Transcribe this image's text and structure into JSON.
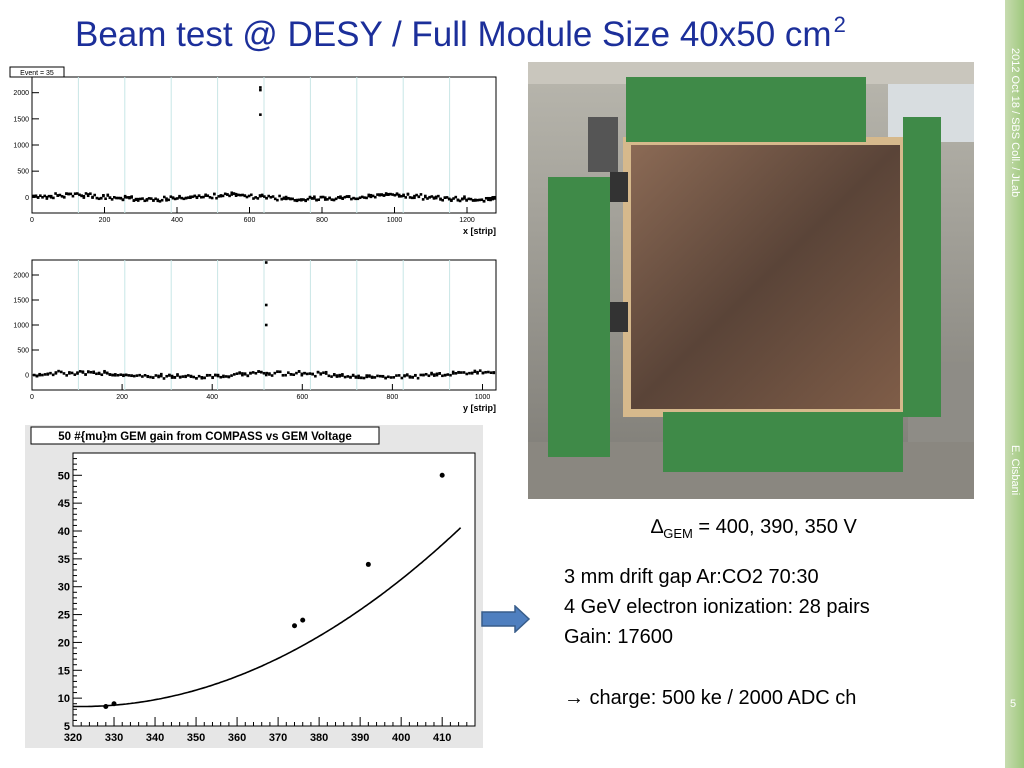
{
  "slide": {
    "title": "Beam test @ DESY / Full Module Size 40x50 cm",
    "title_superscript": "2",
    "sidebar_top": "2012 Oct 18 / SBS Coll. / JLab",
    "sidebar_bottom": "E. Cisbani",
    "page_number": "5"
  },
  "notes": {
    "delta_symbol": "∆",
    "delta_subscript": "GEM",
    "delta_values": " = 400, 390, 350 V",
    "line1": "3 mm drift gap Ar:CO2 70:30",
    "line2": "4 GeV electron ionization: 28 pairs",
    "line3": "Gain: 17600",
    "charge_arrow": "→",
    "charge_text": " charge: 500 ke / 2000 ADC ch"
  },
  "colors": {
    "title": "#1c2f9a",
    "sidebar": "#9fc87d",
    "arrow": "#4f7fbf",
    "hist_grid": "#c8e6e6"
  },
  "chart_data": [
    {
      "type": "scatter",
      "stat_label": "Event = 35",
      "xlabel": "x [strip]",
      "xlim": [
        0,
        1280
      ],
      "ylim": [
        -300,
        2300
      ],
      "x_ticks": [
        0,
        200,
        400,
        600,
        800,
        1000,
        1200
      ],
      "y_ticks": [
        0,
        500,
        1000,
        1500,
        2000
      ],
      "baseline": 0,
      "spike": {
        "x": 630,
        "values": [
          2100,
          2050,
          1580,
          20
        ]
      }
    },
    {
      "type": "scatter",
      "stat_label": "",
      "xlabel": "y [strip]",
      "xlim": [
        0,
        1030
      ],
      "ylim": [
        -300,
        2300
      ],
      "x_ticks": [
        0,
        200,
        400,
        600,
        800,
        1000
      ],
      "y_ticks": [
        0,
        500,
        1000,
        1500,
        2000
      ],
      "baseline": 0,
      "spike": {
        "x": 520,
        "values": [
          2250,
          1400,
          1000,
          0
        ]
      }
    },
    {
      "type": "line",
      "title": "50 #{mu}m GEM gain from COMPASS vs GEM Voltage",
      "xlim": [
        320,
        418
      ],
      "ylim": [
        5,
        54
      ],
      "x_ticks": [
        320,
        330,
        340,
        350,
        360,
        370,
        380,
        390,
        400,
        410
      ],
      "y_ticks": [
        5,
        10,
        15,
        20,
        25,
        30,
        35,
        40,
        45,
        50
      ],
      "points": [
        {
          "x": 328,
          "y": 8.5
        },
        {
          "x": 330,
          "y": 9
        },
        {
          "x": 374,
          "y": 23
        },
        {
          "x": 376,
          "y": 24
        },
        {
          "x": 392,
          "y": 34
        },
        {
          "x": 410,
          "y": 50
        }
      ],
      "fit": {
        "a": 8.5,
        "b": 0.00375,
        "x0": 322
      }
    }
  ]
}
